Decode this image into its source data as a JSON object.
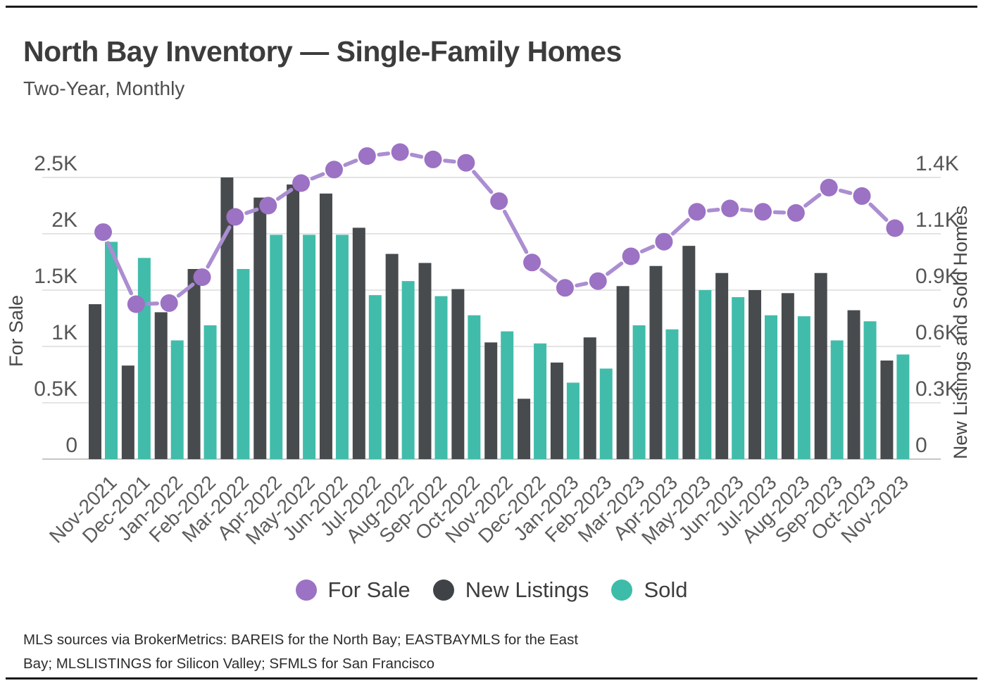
{
  "header": {
    "title": "North Bay Inventory — Single-Family Homes",
    "subtitle": "Two-Year, Monthly"
  },
  "chart_data": {
    "type": "bar+line",
    "title": "North Bay Inventory — Single-Family Homes",
    "subtitle": "Two-Year, Monthly",
    "grid": true,
    "legend_position": "bottom",
    "categories": [
      "Nov-2021",
      "Dec-2021",
      "Jan-2022",
      "Feb-2022",
      "Mar-2022",
      "Apr-2022",
      "May-2022",
      "Jun-2022",
      "Jul-2022",
      "Aug-2022",
      "Sep-2022",
      "Oct-2022",
      "Nov-2022",
      "Dec-2022",
      "Jan-2023",
      "Feb-2023",
      "Mar-2023",
      "Apr-2023",
      "May-2023",
      "Jun-2023",
      "Jul-2023",
      "Aug-2023",
      "Sep-2023",
      "Oct-2023",
      "Nov-2023"
    ],
    "series": [
      {
        "name": "For Sale",
        "type": "line",
        "axis": "left",
        "color": "#ab8ed1",
        "marker_color": "#9c72c4",
        "values": [
          2015,
          1375,
          1385,
          1615,
          2150,
          2250,
          2450,
          2570,
          2690,
          2725,
          2660,
          2630,
          2290,
          1745,
          1520,
          1580,
          1800,
          1930,
          2195,
          2225,
          2195,
          2185,
          2410,
          2335,
          2050
        ]
      },
      {
        "name": "New Listings",
        "type": "bar",
        "axis": "right",
        "color": "#484b4e",
        "values": [
          770,
          465,
          730,
          945,
          1400,
          1300,
          1365,
          1320,
          1150,
          1020,
          975,
          845,
          580,
          300,
          480,
          605,
          860,
          960,
          1060,
          925,
          840,
          825,
          925,
          740,
          490
        ]
      },
      {
        "name": "Sold",
        "type": "bar",
        "axis": "right",
        "color": "#41bcab",
        "values": [
          1080,
          1000,
          590,
          665,
          945,
          1115,
          1115,
          1115,
          815,
          885,
          810,
          715,
          635,
          575,
          380,
          450,
          665,
          645,
          840,
          805,
          715,
          710,
          590,
          685,
          520
        ]
      }
    ],
    "left_axis": {
      "label": "For Sale",
      "tick_labels": [
        "0",
        "0.5K",
        "1K",
        "1.5K",
        "2K",
        "2.5K"
      ],
      "tick_values": [
        0,
        500,
        1000,
        1500,
        2000,
        2500
      ],
      "range": [
        0,
        2500
      ]
    },
    "right_axis": {
      "label": "New Listings and Sold Homes",
      "tick_labels": [
        "0",
        "0.3K",
        "0.6K",
        "0.9K",
        "1.1K",
        "1.4K"
      ],
      "range": [
        0,
        1400
      ]
    }
  },
  "legend": {
    "items": [
      {
        "label": "For Sale",
        "color": "#9c72c4"
      },
      {
        "label": "New Listings",
        "color": "#3f4347"
      },
      {
        "label": "Sold",
        "color": "#3ebcaa"
      }
    ]
  },
  "footnote": {
    "line1": "MLS sources via BrokerMetrics: BAREIS for the North Bay; EASTBAYMLS for the East",
    "line2": "Bay; MLSLISTINGS for Silicon Valley; SFMLS for San Francisco"
  }
}
